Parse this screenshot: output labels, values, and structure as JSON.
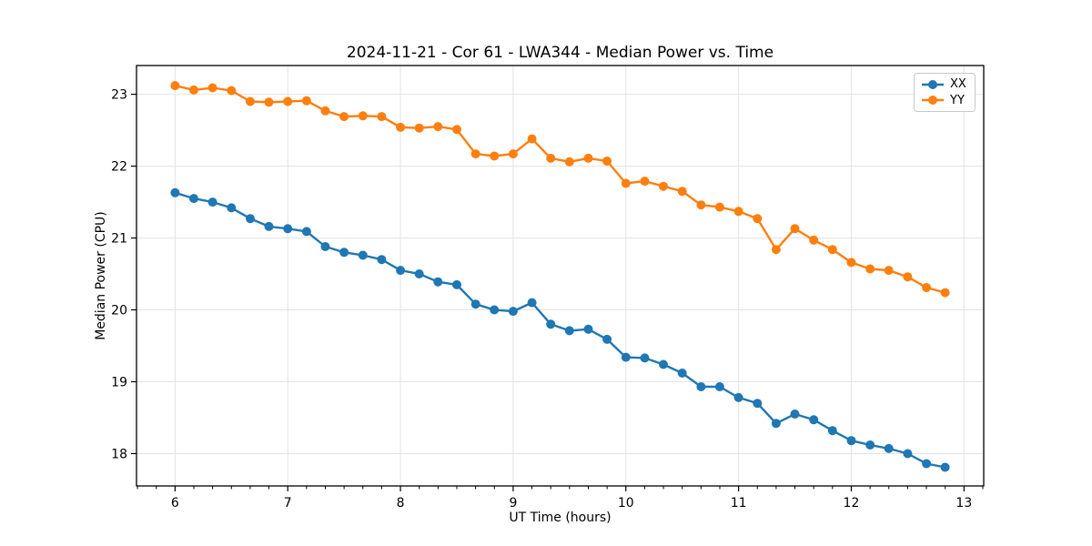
{
  "chart_data": {
    "type": "line",
    "title": "2024-11-21 - Cor 61 - LWA344 - Median Power vs. Time",
    "xlabel": "UT Time (hours)",
    "ylabel": "Median Power (CPU)",
    "xlim": [
      5.658,
      13.175
    ],
    "ylim": [
      17.55,
      23.4
    ],
    "x_ticks": [
      6,
      7,
      8,
      9,
      10,
      11,
      12,
      13
    ],
    "y_ticks": [
      18,
      19,
      20,
      21,
      22,
      23
    ],
    "x_minor_tick_step": 0.1667,
    "grid": true,
    "grid_color": "#e3e3e3",
    "spine_color": "#000000",
    "legend": {
      "position": "upper right",
      "entries": [
        "XX",
        "YY"
      ]
    },
    "x": [
      6.0,
      6.167,
      6.333,
      6.5,
      6.667,
      6.833,
      7.0,
      7.167,
      7.333,
      7.5,
      7.667,
      7.833,
      8.0,
      8.167,
      8.333,
      8.5,
      8.667,
      8.833,
      9.0,
      9.167,
      9.333,
      9.5,
      9.667,
      9.833,
      10.0,
      10.167,
      10.333,
      10.5,
      10.667,
      10.833,
      11.0,
      11.167,
      11.333,
      11.5,
      11.667,
      11.833,
      12.0,
      12.167,
      12.333,
      12.5,
      12.667,
      12.833
    ],
    "series": [
      {
        "name": "XX",
        "color": "#1f77b4",
        "values": [
          21.63,
          21.55,
          21.5,
          21.42,
          21.27,
          21.16,
          21.13,
          21.09,
          20.88,
          20.8,
          20.76,
          20.7,
          20.55,
          20.5,
          20.39,
          20.35,
          20.08,
          20.0,
          19.98,
          20.1,
          19.8,
          19.71,
          19.73,
          19.59,
          19.34,
          19.33,
          19.24,
          19.12,
          18.93,
          18.93,
          18.78,
          18.7,
          18.42,
          18.55,
          18.47,
          18.32,
          18.18,
          18.12,
          18.07,
          18.0,
          17.86,
          17.81
        ]
      },
      {
        "name": "YY",
        "color": "#ff7f0e",
        "values": [
          23.12,
          23.06,
          23.09,
          23.05,
          22.9,
          22.89,
          22.9,
          22.91,
          22.77,
          22.69,
          22.7,
          22.69,
          22.54,
          22.53,
          22.55,
          22.51,
          22.17,
          22.14,
          22.17,
          22.38,
          22.11,
          22.06,
          22.11,
          22.07,
          21.76,
          21.79,
          21.72,
          21.65,
          21.46,
          21.43,
          21.37,
          21.27,
          20.84,
          21.13,
          20.97,
          20.84,
          20.66,
          20.57,
          20.55,
          20.46,
          20.31,
          20.24
        ]
      }
    ]
  }
}
